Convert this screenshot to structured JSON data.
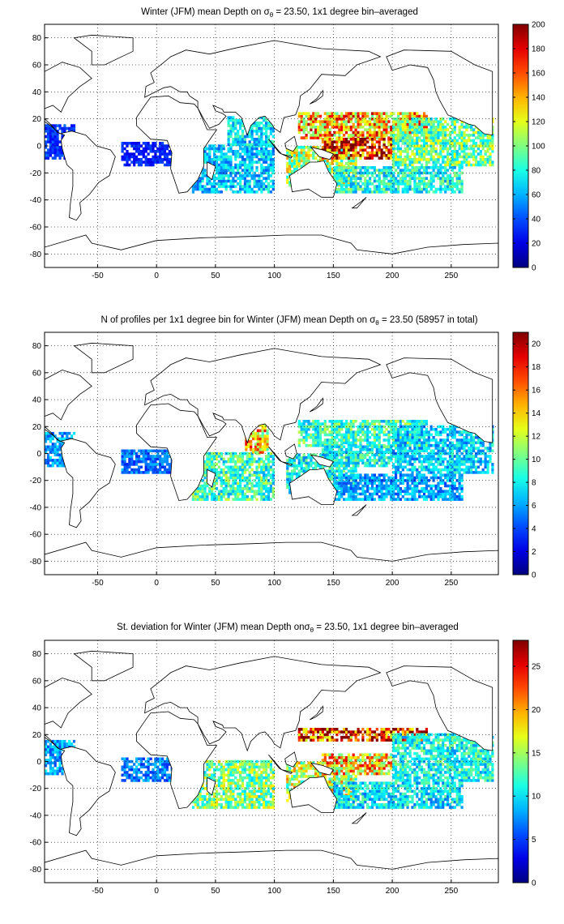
{
  "chart_data": [
    {
      "type": "heatmap",
      "title": {
        "pre": "Winter (JFM) mean Depth on ",
        "sym": "σ",
        "sub": "θ",
        "post": " = 23.50, 1x1 degree bin–averaged"
      },
      "xticks": [
        "-50",
        "0",
        "50",
        "100",
        "150",
        "200",
        "250"
      ],
      "yticks": [
        "80",
        "60",
        "40",
        "20",
        "0",
        "-20",
        "-40",
        "-60",
        "-80"
      ],
      "xlim": [
        -95,
        290
      ],
      "ylim": [
        -90,
        90
      ],
      "grid": true,
      "colormap": "jet",
      "colorbar": {
        "ticks": [
          "200",
          "180",
          "160",
          "140",
          "120",
          "100",
          "80",
          "60",
          "40",
          "20",
          "0"
        ],
        "min": 0,
        "max": 200
      },
      "regions": [
        {
          "lon": [
            -95,
            -70
          ],
          "lat": [
            -10,
            15
          ],
          "value": 35
        },
        {
          "lon": [
            -30,
            15
          ],
          "lat": [
            -15,
            3
          ],
          "value": 30
        },
        {
          "lon": [
            30,
            100
          ],
          "lat": [
            -35,
            0
          ],
          "value": 65
        },
        {
          "lon": [
            60,
            100
          ],
          "lat": [
            0,
            22
          ],
          "value": 70
        },
        {
          "lon": [
            110,
            170
          ],
          "lat": [
            -30,
            0
          ],
          "value": 110
        },
        {
          "lon": [
            120,
            230
          ],
          "lat": [
            5,
            25
          ],
          "value": 140
        },
        {
          "lon": [
            140,
            200
          ],
          "lat": [
            -10,
            5
          ],
          "value": 175
        },
        {
          "lon": [
            200,
            285
          ],
          "lat": [
            -15,
            20
          ],
          "value": 95
        },
        {
          "lon": [
            150,
            260
          ],
          "lat": [
            -35,
            -15
          ],
          "value": 80
        }
      ]
    },
    {
      "type": "heatmap",
      "title": {
        "pre": "N of profiles per 1x1 degree bin for Winter (JFM) mean Depth on ",
        "sym": "σ",
        "sub": "θ",
        "post": " = 23.50 (58957 in total)"
      },
      "xticks": [
        "-50",
        "0",
        "50",
        "100",
        "150",
        "200",
        "250"
      ],
      "yticks": [
        "80",
        "60",
        "40",
        "20",
        "0",
        "-20",
        "-40",
        "-60",
        "-80"
      ],
      "xlim": [
        -95,
        290
      ],
      "ylim": [
        -90,
        90
      ],
      "grid": true,
      "colormap": "jet",
      "colorbar": {
        "ticks": [
          "20",
          "18",
          "16",
          "14",
          "12",
          "10",
          "8",
          "6",
          "4",
          "2",
          "0"
        ],
        "min": 0,
        "max": 21
      },
      "regions": [
        {
          "lon": [
            -95,
            -70
          ],
          "lat": [
            -10,
            15
          ],
          "value": 6
        },
        {
          "lon": [
            -30,
            15
          ],
          "lat": [
            -15,
            3
          ],
          "value": 5
        },
        {
          "lon": [
            30,
            100
          ],
          "lat": [
            -35,
            0
          ],
          "value": 9
        },
        {
          "lon": [
            75,
            95
          ],
          "lat": [
            0,
            22
          ],
          "value": 14
        },
        {
          "lon": [
            110,
            170
          ],
          "lat": [
            -30,
            0
          ],
          "value": 8
        },
        {
          "lon": [
            120,
            230
          ],
          "lat": [
            5,
            25
          ],
          "value": 9
        },
        {
          "lon": [
            140,
            200
          ],
          "lat": [
            -10,
            5
          ],
          "value": 8
        },
        {
          "lon": [
            200,
            285
          ],
          "lat": [
            -15,
            20
          ],
          "value": 7
        },
        {
          "lon": [
            150,
            260
          ],
          "lat": [
            -35,
            -15
          ],
          "value": 6
        }
      ]
    },
    {
      "type": "heatmap",
      "title": {
        "pre": "St. deviation for Winter (JFM) mean Depth on",
        "sym": "σ",
        "sub": "θ",
        "post": " = 23.50, 1x1 degree bin–averaged"
      },
      "xticks": [
        "-50",
        "0",
        "50",
        "100",
        "150",
        "200",
        "250"
      ],
      "yticks": [
        "80",
        "60",
        "40",
        "20",
        "0",
        "-20",
        "-40",
        "-60",
        "-80"
      ],
      "xlim": [
        -95,
        290
      ],
      "ylim": [
        -90,
        90
      ],
      "grid": true,
      "colormap": "jet",
      "colorbar": {
        "ticks": [
          "25",
          "20",
          "15",
          "10",
          "5",
          "0"
        ],
        "min": 0,
        "max": 28
      },
      "regions": [
        {
          "lon": [
            -95,
            -70
          ],
          "lat": [
            -10,
            15
          ],
          "value": 8
        },
        {
          "lon": [
            -30,
            15
          ],
          "lat": [
            -15,
            3
          ],
          "value": 7
        },
        {
          "lon": [
            30,
            100
          ],
          "lat": [
            -35,
            0
          ],
          "value": 14
        },
        {
          "lon": [
            110,
            170
          ],
          "lat": [
            -30,
            0
          ],
          "value": 16
        },
        {
          "lon": [
            120,
            230
          ],
          "lat": [
            15,
            25
          ],
          "value": 24
        },
        {
          "lon": [
            140,
            200
          ],
          "lat": [
            -10,
            5
          ],
          "value": 19
        },
        {
          "lon": [
            200,
            285
          ],
          "lat": [
            -15,
            20
          ],
          "value": 11
        },
        {
          "lon": [
            150,
            260
          ],
          "lat": [
            -35,
            -15
          ],
          "value": 10
        }
      ]
    }
  ]
}
